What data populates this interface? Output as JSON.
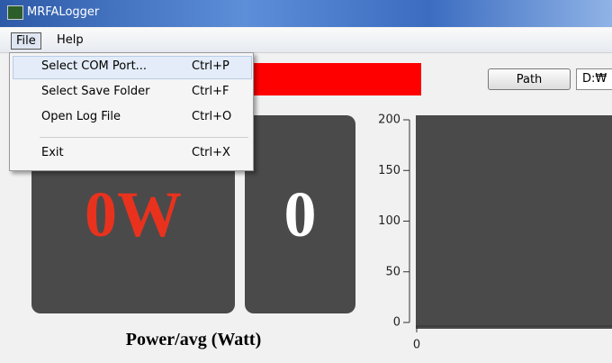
{
  "window": {
    "title": "MRFALogger"
  },
  "menu": {
    "items": [
      "File",
      "Help"
    ],
    "dropdown": [
      {
        "label": "Select COM Port...",
        "shortcut": "Ctrl+P"
      },
      {
        "label": "Select Save Folder",
        "shortcut": "Ctrl+F"
      },
      {
        "label": "Open Log File",
        "shortcut": "Ctrl+O"
      },
      {
        "label": "Exit",
        "shortcut": "Ctrl+X"
      }
    ]
  },
  "toolbar": {
    "button": "Path",
    "field": "D:₩"
  },
  "panels": {
    "power": "0W",
    "avg": "0",
    "caption": "Power/avg (Watt)"
  },
  "plot": {
    "ylim": [
      0,
      200
    ],
    "yticks": [
      0,
      50,
      100,
      150,
      200
    ],
    "xticks": [
      0
    ]
  }
}
